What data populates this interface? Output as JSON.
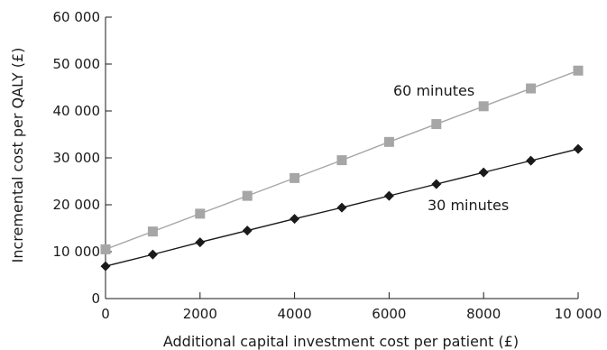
{
  "chart_data": {
    "type": "line",
    "title": "",
    "xlabel": "Additional capital investment cost per patient (£)",
    "ylabel": "Incremental cost per QALY (£)",
    "xlim": [
      0,
      10000
    ],
    "ylim": [
      0,
      60000
    ],
    "x_ticks": [
      0,
      2000,
      4000,
      6000,
      8000,
      10000
    ],
    "x_tick_labels": [
      "0",
      "2000",
      "4000",
      "6000",
      "8000",
      "10 000"
    ],
    "y_ticks": [
      0,
      10000,
      20000,
      30000,
      40000,
      50000,
      60000
    ],
    "y_tick_labels": [
      "0",
      "10 000",
      "20 000",
      "30 000",
      "40 000",
      "50 000",
      "60 000"
    ],
    "grid": false,
    "x": [
      0,
      1000,
      2000,
      3000,
      4000,
      5000,
      6000,
      7000,
      8000,
      9000,
      10000
    ],
    "series": [
      {
        "name": "60 minutes",
        "marker": "square",
        "color": "#a6a6a6",
        "values": [
          10500,
          14300,
          18100,
          21900,
          25700,
          29500,
          33400,
          37200,
          41000,
          44800,
          48600
        ]
      },
      {
        "name": "30 minutes",
        "marker": "diamond",
        "color": "#1a1a1a",
        "values": [
          6900,
          9400,
          12000,
          14500,
          17000,
          19400,
          21900,
          24400,
          26900,
          29400,
          31900
        ]
      }
    ]
  }
}
